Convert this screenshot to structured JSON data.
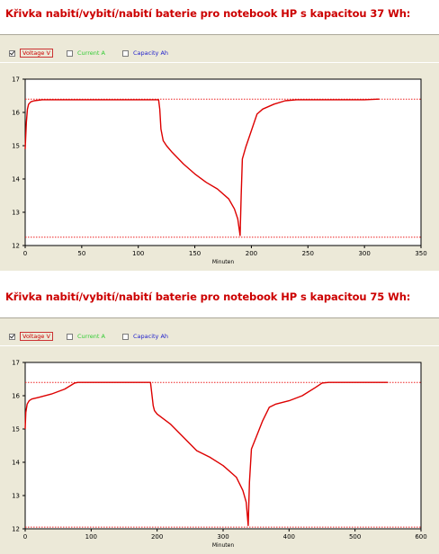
{
  "chart_data": [
    {
      "type": "line",
      "title": "Křivka nabití/vybití/nabití baterie pro notebook HP s kapacitou 37 Wh:",
      "xlabel": "Minuten",
      "ylabel": "",
      "xlim": [
        0,
        350
      ],
      "ylim": [
        12,
        17
      ],
      "xticks": [
        "0",
        "50",
        "100",
        "150",
        "200",
        "250",
        "300",
        "350"
      ],
      "yticks": [
        "12",
        "13",
        "14",
        "15",
        "16",
        "17"
      ],
      "legend": [
        {
          "label": "Voltage V",
          "checked": true,
          "color": "#cc0000"
        },
        {
          "label": "Current A",
          "checked": false,
          "color": "#33cc33"
        },
        {
          "label": "Capacity Ah",
          "checked": false,
          "color": "#2222cc"
        }
      ],
      "reference_lines": [
        16.4,
        12.25
      ],
      "series": [
        {
          "color": "#dd0000",
          "x": [
            0,
            1,
            2,
            3,
            5,
            8,
            15,
            30,
            60,
            100,
            118,
            119,
            120,
            122,
            125,
            130,
            140,
            150,
            160,
            170,
            180,
            185,
            188,
            190,
            191,
            192,
            195,
            200,
            205,
            210,
            220,
            230,
            240,
            250,
            260,
            280,
            300,
            313
          ],
          "y": [
            14.9,
            15.7,
            16.1,
            16.25,
            16.32,
            16.35,
            16.38,
            16.38,
            16.38,
            16.38,
            16.38,
            16.1,
            15.5,
            15.15,
            15.0,
            14.8,
            14.45,
            14.15,
            13.9,
            13.7,
            13.4,
            13.1,
            12.8,
            12.3,
            13.5,
            14.6,
            14.95,
            15.45,
            15.95,
            16.1,
            16.25,
            16.35,
            16.38,
            16.38,
            16.38,
            16.38,
            16.38,
            16.4
          ]
        }
      ]
    },
    {
      "type": "line",
      "title": "Křivka nabití/vybití/nabití baterie pro notebook HP s kapacitou 75 Wh:",
      "xlabel": "Minuten",
      "ylabel": "",
      "xlim": [
        0,
        600
      ],
      "ylim": [
        12,
        17
      ],
      "xticks": [
        "0",
        "100",
        "200",
        "300",
        "400",
        "500",
        "600"
      ],
      "yticks": [
        "12",
        "13",
        "14",
        "15",
        "16",
        "17"
      ],
      "legend": [
        {
          "label": "Voltage V",
          "checked": true,
          "color": "#cc0000"
        },
        {
          "label": "Current A",
          "checked": false,
          "color": "#33cc33"
        },
        {
          "label": "Capacity Ah",
          "checked": false,
          "color": "#2222cc"
        }
      ],
      "reference_lines": [
        16.4,
        12.05
      ],
      "series": [
        {
          "color": "#dd0000",
          "x": [
            0,
            1,
            3,
            6,
            10,
            20,
            40,
            60,
            75,
            80,
            100,
            150,
            190,
            192,
            194,
            196,
            200,
            220,
            240,
            260,
            280,
            300,
            320,
            330,
            335,
            338,
            340,
            343,
            350,
            360,
            370,
            380,
            400,
            420,
            440,
            450,
            460,
            500,
            550
          ],
          "y": [
            15.0,
            15.5,
            15.75,
            15.85,
            15.9,
            15.95,
            16.05,
            16.2,
            16.38,
            16.4,
            16.4,
            16.4,
            16.4,
            16.05,
            15.7,
            15.55,
            15.45,
            15.15,
            14.75,
            14.35,
            14.15,
            13.9,
            13.55,
            13.15,
            12.8,
            12.1,
            13.4,
            14.4,
            14.75,
            15.25,
            15.65,
            15.75,
            15.85,
            16.0,
            16.25,
            16.38,
            16.4,
            16.4,
            16.4
          ]
        }
      ]
    }
  ]
}
